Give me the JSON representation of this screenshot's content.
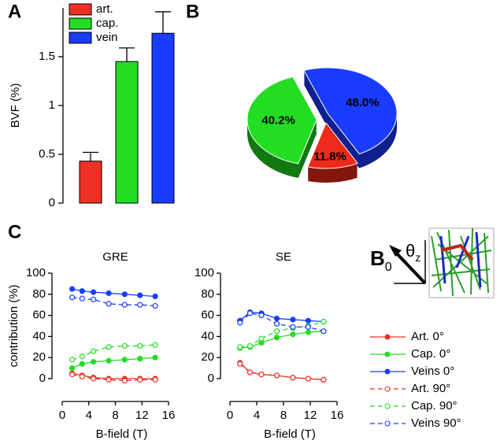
{
  "chart_data": [
    {
      "type": "bar",
      "panel": "A",
      "ylabel": "BVF (%)",
      "categories": [
        "art.",
        "cap.",
        "vein"
      ],
      "values": [
        0.43,
        1.45,
        1.74
      ],
      "errors": [
        0.09,
        0.14,
        0.22
      ],
      "colors": [
        "#ee3124",
        "#22dd22",
        "#1a3cff"
      ],
      "ylim": [
        0,
        2
      ],
      "yticks": [
        0,
        0.5,
        1,
        1.5
      ],
      "legend": "top"
    },
    {
      "type": "pie",
      "panel": "B",
      "values": [
        48.0,
        11.8,
        40.2
      ],
      "value_labels": [
        "48.0%",
        "11.8%",
        "40.2%"
      ],
      "colors": [
        "#1a3cff",
        "#ee2a1a",
        "#22dd22"
      ],
      "label_colors": [
        "#ffffff",
        "#000000",
        "#000000"
      ]
    },
    {
      "type": "line",
      "panel": "C",
      "title": "GRE",
      "ylabel": "contribution (%)",
      "xlabel": "B-field (T)",
      "x": [
        1.5,
        3,
        4.7,
        7,
        9.4,
        11.7,
        14
      ],
      "xlim": [
        0,
        16
      ],
      "xticks": [
        0,
        4,
        8,
        12,
        16
      ],
      "ylim": [
        0,
        100
      ],
      "yticks": [
        0,
        20,
        40,
        60,
        80,
        100
      ],
      "series": [
        {
          "name": "Art. 0°",
          "color": "#ee3124",
          "style": "solid",
          "values": [
            5,
            3,
            1,
            0,
            0,
            0,
            0
          ]
        },
        {
          "name": "Cap. 0°",
          "color": "#22dd22",
          "style": "solid",
          "values": [
            10,
            14,
            16,
            17,
            18,
            19,
            20
          ]
        },
        {
          "name": "Veins 0°",
          "color": "#1a3cff",
          "style": "solid",
          "values": [
            85,
            83,
            82,
            81,
            80,
            79,
            78
          ]
        },
        {
          "name": "Art. 90°",
          "color": "#ee3124",
          "style": "dashed",
          "values": [
            4,
            2,
            0,
            -1,
            -2,
            -1,
            -1
          ]
        },
        {
          "name": "Cap. 90°",
          "color": "#22dd22",
          "style": "dashed",
          "values": [
            18,
            21,
            26,
            30,
            31,
            31,
            32
          ]
        },
        {
          "name": "Veins 90°",
          "color": "#1a3cff",
          "style": "dashed",
          "values": [
            77,
            76,
            75,
            71,
            70,
            70,
            69
          ]
        }
      ]
    },
    {
      "type": "line",
      "title": "SE",
      "xlabel": "B-field (T)",
      "x": [
        1.5,
        3,
        4.7,
        7,
        9.4,
        11.7,
        14
      ],
      "xlim": [
        0,
        16
      ],
      "xticks": [
        0,
        4,
        8,
        12,
        16
      ],
      "ylim": [
        0,
        100
      ],
      "yticks": [
        0,
        20,
        40,
        60,
        80,
        100
      ],
      "series": [
        {
          "color": "#ee3124",
          "style": "solid",
          "values": [
            15,
            6,
            4,
            3,
            1,
            0,
            -1
          ]
        },
        {
          "color": "#22dd22",
          "style": "solid",
          "values": [
            29,
            30,
            34,
            39,
            42,
            44,
            45
          ]
        },
        {
          "color": "#1a3cff",
          "style": "solid",
          "values": [
            55,
            63,
            62,
            57,
            56,
            55,
            54
          ]
        },
        {
          "color": "#ee3124",
          "style": "dashed",
          "values": [
            14,
            6,
            4,
            3,
            1,
            0,
            -1
          ]
        },
        {
          "color": "#22dd22",
          "style": "dashed",
          "values": [
            30,
            31,
            38,
            45,
            48,
            50,
            54
          ]
        },
        {
          "color": "#1a3cff",
          "style": "dashed",
          "values": [
            53,
            62,
            60,
            52,
            49,
            49,
            45
          ]
        }
      ]
    }
  ],
  "diagram": {
    "field": "B",
    "field_sub": "0",
    "angle": "θ",
    "angle_sub": "z"
  }
}
